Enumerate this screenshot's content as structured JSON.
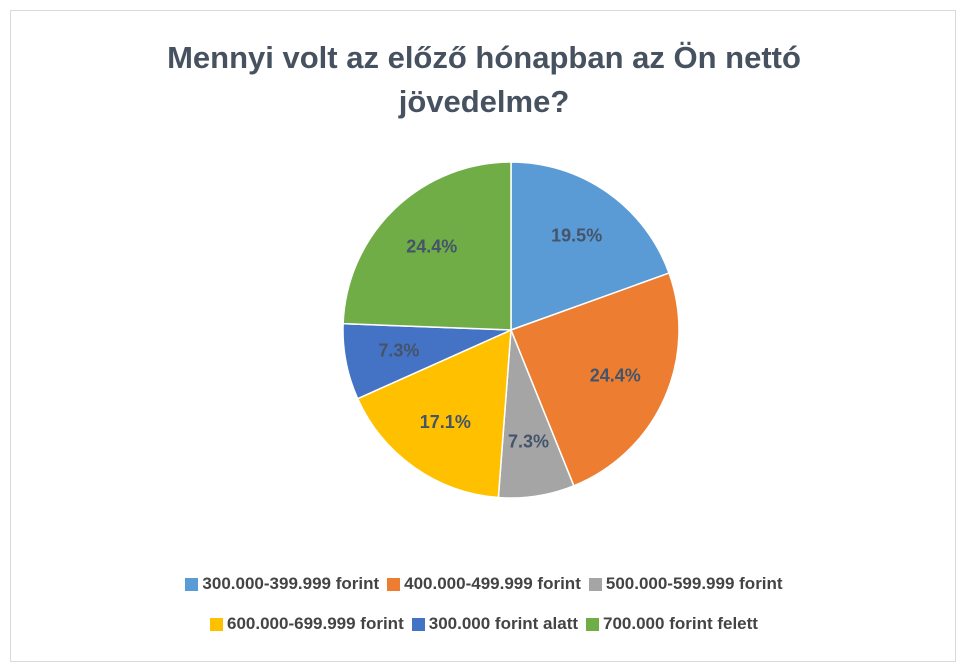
{
  "chart_data": {
    "type": "pie",
    "title": "Mennyi volt az előző hónapban az Ön nettó jövedelme?",
    "categories": [
      "300.000-399.999 forint",
      "400.000-499.999 forint",
      "500.000-599.999 forint",
      "600.000-699.999 forint",
      "300.000 forint alatt",
      "700.000 forint felett"
    ],
    "values": [
      19.5,
      24.4,
      7.3,
      17.1,
      7.3,
      24.4
    ],
    "value_labels": [
      "19.5%",
      "24.4%",
      "7.3%",
      "17.1%",
      "7.3%",
      "24.4%"
    ],
    "colors": [
      "#5b9bd5",
      "#ed7d31",
      "#a5a5a5",
      "#ffc000",
      "#4472c4",
      "#70ad47"
    ],
    "legend": "bottom"
  }
}
